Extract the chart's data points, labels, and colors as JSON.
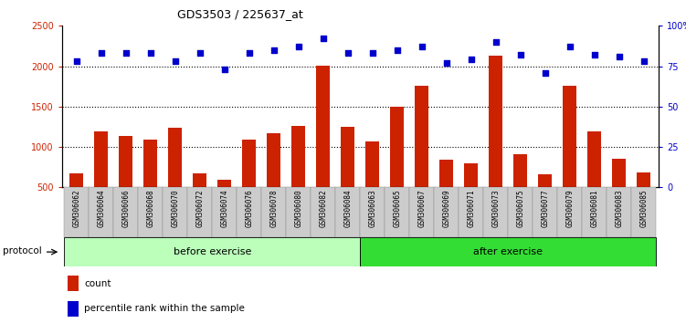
{
  "title": "GDS3503 / 225637_at",
  "categories": [
    "GSM306062",
    "GSM306064",
    "GSM306066",
    "GSM306068",
    "GSM306070",
    "GSM306072",
    "GSM306074",
    "GSM306076",
    "GSM306078",
    "GSM306080",
    "GSM306082",
    "GSM306084",
    "GSM306063",
    "GSM306065",
    "GSM306067",
    "GSM306069",
    "GSM306071",
    "GSM306073",
    "GSM306075",
    "GSM306077",
    "GSM306079",
    "GSM306081",
    "GSM306083",
    "GSM306085"
  ],
  "bar_values": [
    670,
    1190,
    1140,
    1095,
    1235,
    670,
    590,
    1090,
    1165,
    1265,
    2010,
    1255,
    1070,
    1500,
    1760,
    845,
    800,
    2130,
    910,
    665,
    1755,
    1195,
    855,
    680
  ],
  "percentile_values": [
    78,
    83,
    83,
    83,
    78,
    83,
    73,
    83,
    85,
    87,
    92,
    83,
    83,
    85,
    87,
    77,
    79,
    90,
    82,
    71,
    87,
    82,
    81,
    78
  ],
  "before_exercise_count": 12,
  "after_exercise_count": 12,
  "ylim_left": [
    500,
    2500
  ],
  "ylim_right": [
    0,
    100
  ],
  "yticks_left": [
    500,
    1000,
    1500,
    2000,
    2500
  ],
  "yticks_right": [
    0,
    25,
    50,
    75,
    100
  ],
  "ytick_labels_right": [
    "0",
    "25",
    "50",
    "75",
    "100%"
  ],
  "bar_color": "#CC2200",
  "dot_color": "#0000CC",
  "before_color": "#BBFFBB",
  "after_color": "#33DD33",
  "label_box_color": "#CCCCCC",
  "protocol_label": "protocol",
  "before_label": "before exercise",
  "after_label": "after exercise",
  "legend_count_label": "count",
  "legend_pct_label": "percentile rank within the sample",
  "dotted_line_values": [
    1000,
    1500,
    2000
  ]
}
